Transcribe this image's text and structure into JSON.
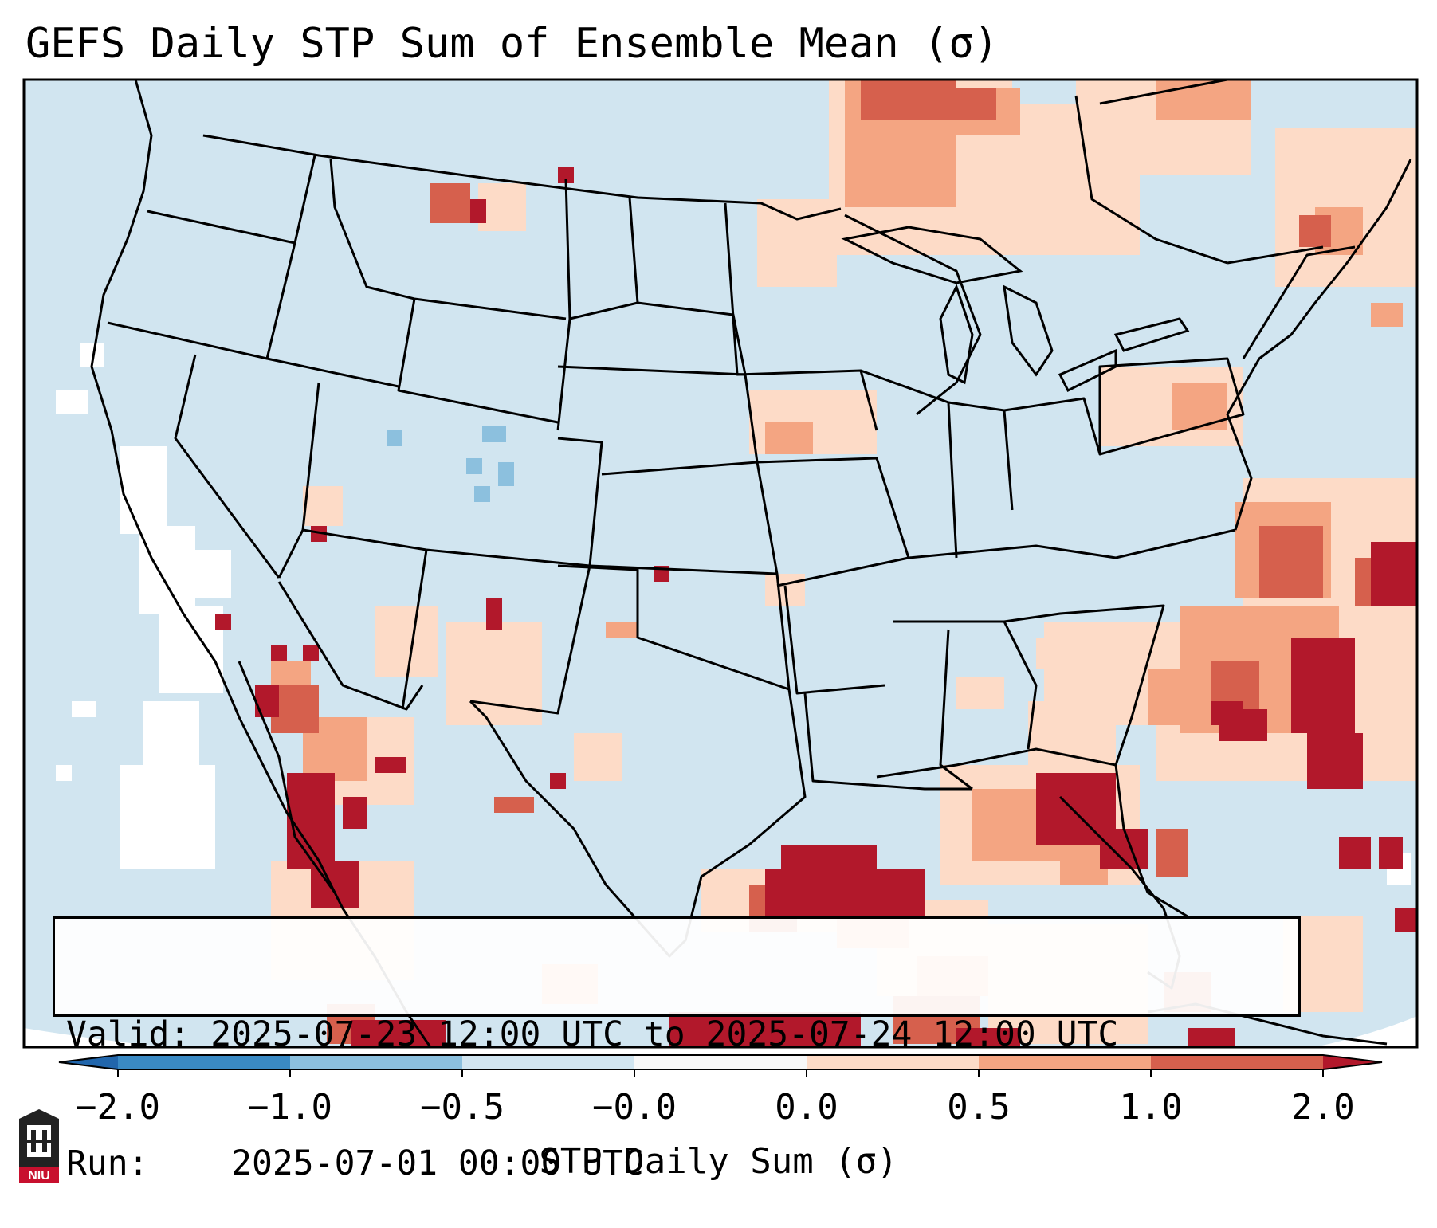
{
  "title": "GEFS Daily STP Sum of Ensemble Mean (σ)",
  "info": {
    "valid_label": "Valid:",
    "valid_value": "2025-07-23 12:00 UTC to 2025-07-24 12:00 UTC",
    "run_label": "Run:",
    "run_value": "2025-07-01 00:00 UTC"
  },
  "colorbar": {
    "label": "STP Daily Sum (σ)",
    "ticks": [
      "−2.0",
      "−1.0",
      "−0.5",
      "−0.0",
      "0.0",
      "0.5",
      "1.0",
      "2.0"
    ],
    "bins": [
      {
        "from": -2.0,
        "to": -1.0,
        "color": "#3a8ac4"
      },
      {
        "from": -1.0,
        "to": -0.5,
        "color": "#8cc0de"
      },
      {
        "from": -0.5,
        "to": 0.0,
        "color": "#d1e5f0"
      },
      {
        "from": 0.0,
        "to": 0.0,
        "color": "#f7f7f7"
      },
      {
        "from": 0.0,
        "to": 0.5,
        "color": "#fddbc7"
      },
      {
        "from": 0.5,
        "to": 1.0,
        "color": "#f4a582"
      },
      {
        "from": 1.0,
        "to": 2.0,
        "color": "#d6604d"
      }
    ],
    "under_color": "#2166ac",
    "over_color": "#b2182b"
  },
  "map_colors": {
    "background": "#d1e5f0",
    "border": "#000000",
    "neutral": "#ffffff",
    "light_red": "#fddbc7",
    "mid_red": "#f4a582",
    "red": "#d6604d",
    "dark_red": "#b2182b",
    "light_blue": "#8cc0de"
  },
  "logo": {
    "text": "NIU",
    "color": "#c8102e"
  }
}
